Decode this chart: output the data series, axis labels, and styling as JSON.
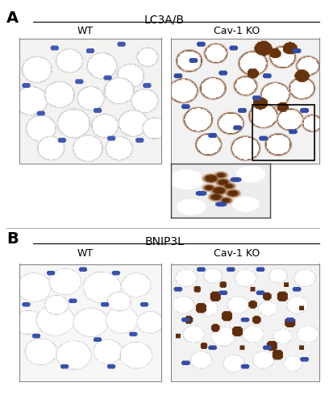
{
  "panel_A_label": "A",
  "panel_B_label": "B",
  "title_A": "LC3A/B",
  "title_B": "BNIP3L",
  "label_WT": "WT",
  "label_KO": "Cav-1 KO",
  "bg_color": "#ffffff",
  "line_color": "#000000",
  "text_color": "#000000",
  "fig_width": 4.08,
  "fig_height": 5.0,
  "dpi": 100
}
